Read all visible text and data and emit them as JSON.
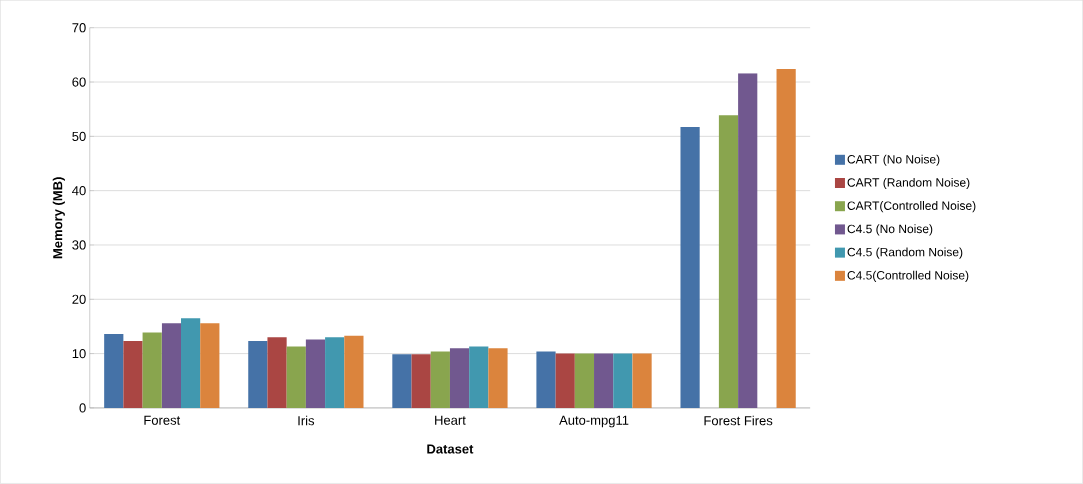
{
  "chart_data": {
    "type": "bar",
    "xlabel": "Dataset",
    "ylabel": "Memory (MB)",
    "categories": [
      "Forest",
      "Iris",
      "Heart",
      "Auto-mpg11",
      "Forest Fires"
    ],
    "series": [
      {
        "name": "CART (No Noise)",
        "color": "#4572a7",
        "values": [
          13.6,
          12.3,
          9.9,
          10.4,
          51.7
        ]
      },
      {
        "name": "CART (Random Noise)",
        "color": "#aa4643",
        "values": [
          12.3,
          13.0,
          9.9,
          10.0,
          null
        ]
      },
      {
        "name": "CART(Controlled Noise)",
        "color": "#89a54e",
        "values": [
          13.9,
          11.3,
          10.4,
          10.0,
          53.9
        ]
      },
      {
        "name": "C4.5 (No Noise)",
        "color": "#71588f",
        "values": [
          15.6,
          12.6,
          11.0,
          10.0,
          61.6
        ]
      },
      {
        "name": "C4.5 (Random Noise)",
        "color": "#4198af",
        "values": [
          16.5,
          13.0,
          11.3,
          10.0,
          null
        ]
      },
      {
        "name": "C4.5(Controlled Noise)",
        "color": "#db843d",
        "values": [
          15.6,
          13.3,
          11.0,
          10.0,
          62.4
        ]
      }
    ],
    "ylim": [
      0,
      70
    ],
    "yticks": [
      0,
      10,
      20,
      30,
      40,
      50,
      60,
      70
    ],
    "grid": "y",
    "legend": "right"
  }
}
